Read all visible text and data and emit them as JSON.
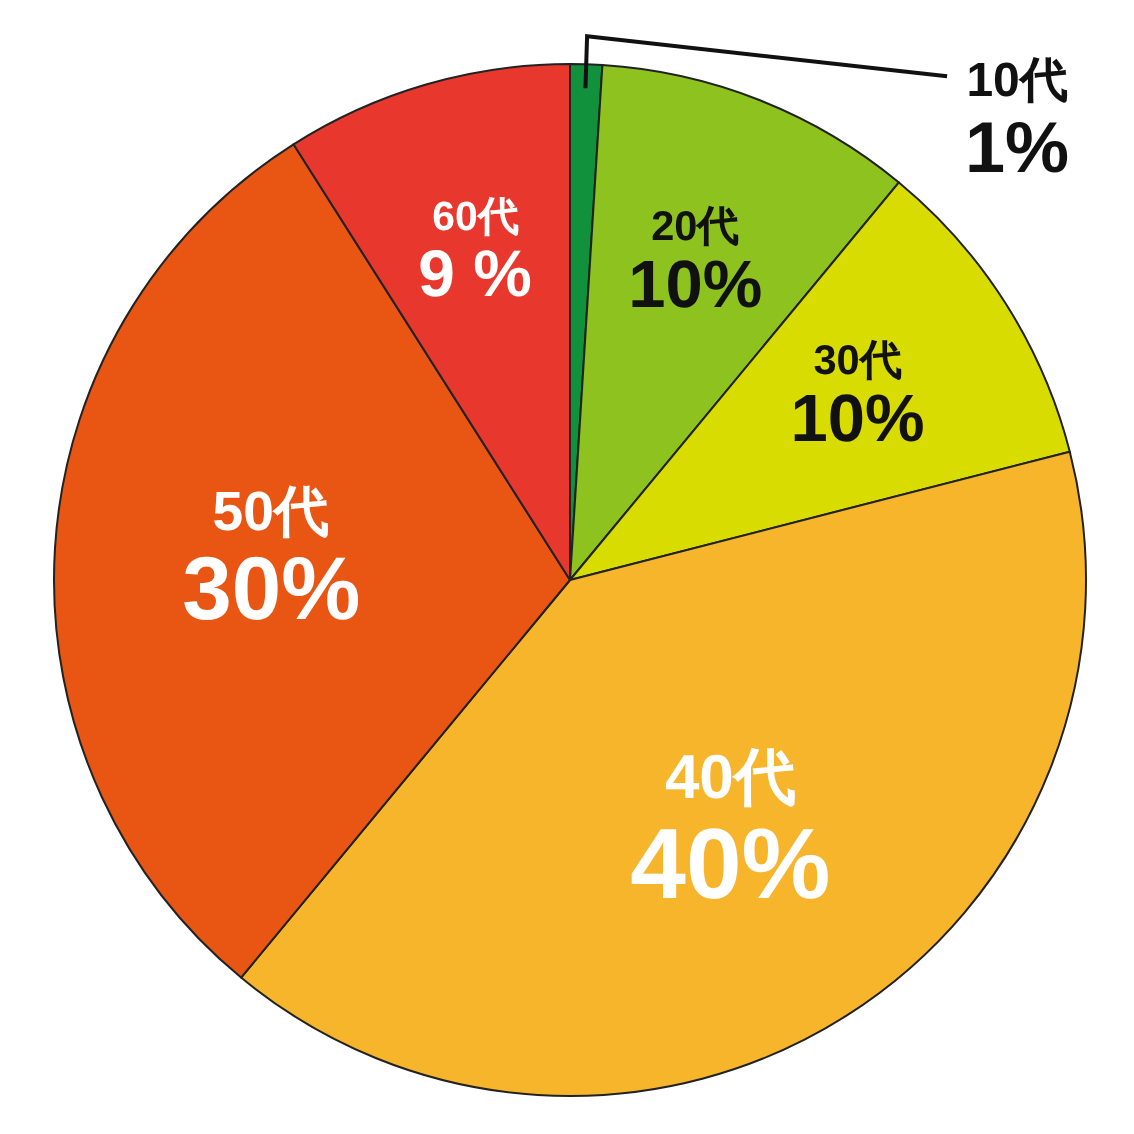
{
  "chart_data": {
    "type": "pie",
    "categories": [
      "10代",
      "20代",
      "30代",
      "40代",
      "50代",
      "60代"
    ],
    "values": [
      1,
      10,
      10,
      40,
      30,
      9
    ],
    "value_labels": [
      "1%",
      "10%",
      "10%",
      "40%",
      "30%",
      "9 %"
    ],
    "colors": [
      "#12913c",
      "#8dc21f",
      "#d9dc00",
      "#f7b52c",
      "#e95513",
      "#e8382e"
    ],
    "legend": false
  }
}
